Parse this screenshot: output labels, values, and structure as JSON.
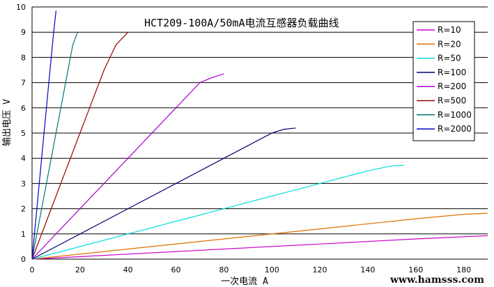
{
  "chart_data": {
    "type": "line",
    "title": "HCT209-100A/50mA电流互感器负载曲线",
    "xlabel": "一次电流 A",
    "ylabel": "输出电压 V",
    "xlim": [
      0,
      190
    ],
    "ylim": [
      0,
      10
    ],
    "x_ticks": [
      0,
      20,
      40,
      60,
      80,
      100,
      120,
      140,
      160,
      180
    ],
    "y_ticks": [
      0,
      1,
      2,
      3,
      4,
      5,
      6,
      7,
      8,
      9,
      10
    ],
    "grid": "horizontal",
    "legend_position": "top-right",
    "series": [
      {
        "name": "R=10",
        "color": "#cc00cc",
        "x": [
          0,
          40,
          80,
          120,
          160,
          190
        ],
        "y": [
          0,
          0.2,
          0.4,
          0.6,
          0.8,
          0.93
        ]
      },
      {
        "name": "R=20",
        "color": "#e07000",
        "x": [
          0,
          40,
          80,
          120,
          160,
          180,
          190
        ],
        "y": [
          0,
          0.4,
          0.8,
          1.2,
          1.6,
          1.78,
          1.82
        ]
      },
      {
        "name": "R=50",
        "color": "#00dddd",
        "x": [
          0,
          40,
          80,
          120,
          140,
          150,
          155
        ],
        "y": [
          0,
          1.0,
          2.0,
          3.0,
          3.5,
          3.7,
          3.72
        ]
      },
      {
        "name": "R=100",
        "color": "#000070",
        "x": [
          0,
          40,
          80,
          100,
          105,
          110
        ],
        "y": [
          0,
          2.0,
          4.0,
          5.0,
          5.15,
          5.2
        ]
      },
      {
        "name": "R=200",
        "color": "#aa00cc",
        "x": [
          0,
          20,
          40,
          60,
          70,
          75,
          80
        ],
        "y": [
          0,
          2.0,
          4.0,
          6.0,
          7.0,
          7.2,
          7.35
        ]
      },
      {
        "name": "R=500",
        "color": "#990000",
        "x": [
          0,
          10,
          20,
          30,
          35,
          40
        ],
        "y": [
          0,
          2.5,
          5.0,
          7.5,
          8.5,
          9.0
        ]
      },
      {
        "name": "R=1000",
        "color": "#007777",
        "x": [
          0,
          5,
          10,
          15,
          17,
          19
        ],
        "y": [
          0,
          2.5,
          5.0,
          7.5,
          8.5,
          9.0
        ]
      },
      {
        "name": "R=2000",
        "color": "#0000cc",
        "x": [
          0,
          2.5,
          5,
          7.5,
          9,
          10
        ],
        "y": [
          0,
          2.5,
          5.0,
          7.5,
          9.0,
          9.85
        ]
      }
    ]
  },
  "watermark": "www.hamsss.com"
}
